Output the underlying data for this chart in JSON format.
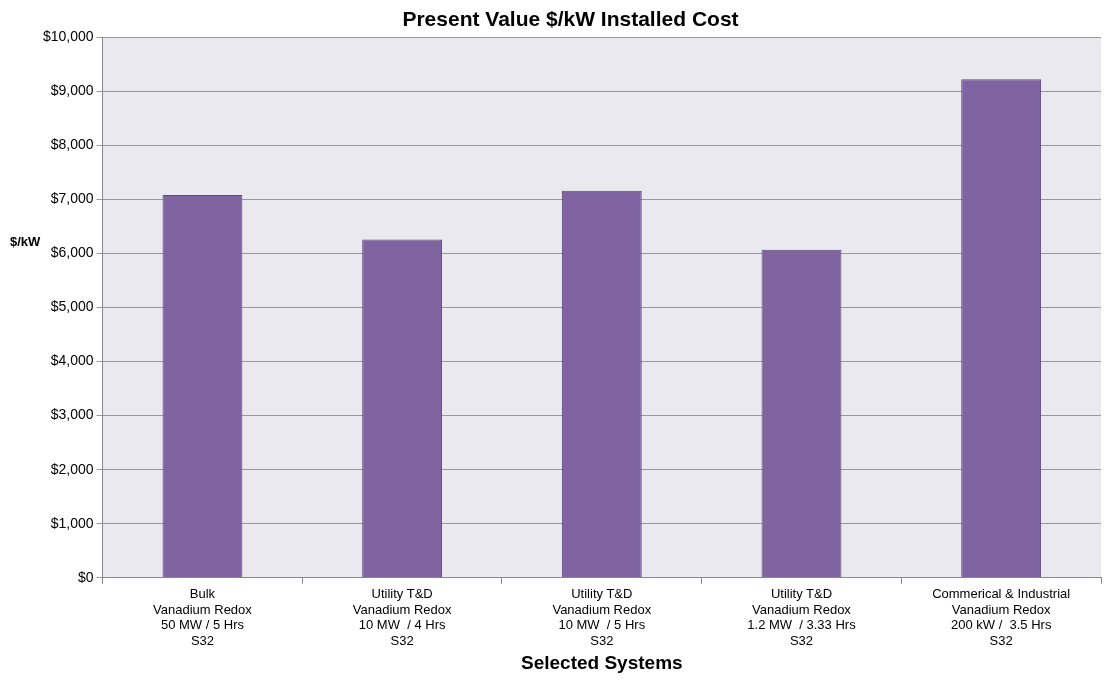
{
  "chart_data": {
    "type": "bar",
    "title": "Present Value $/kW Installed Cost",
    "xlabel": "Selected Systems",
    "ylabel": "$/kW",
    "categories": [
      "Bulk\nVanadium Redox\n50 MW / 5 Hrs\nS32",
      "Utility T&D\nVanadium Redox\n10 MW  / 4 Hrs\nS32",
      "Utility T&D\nVanadium Redox\n10 MW  / 5 Hrs\nS32",
      "Utility T&D\nVanadium Redox\n1.2 MW  / 3.33 Hrs\nS32",
      "Commerical & Industrial\nVanadium Redox\n200 kW /  3.5 Hrs\nS32"
    ],
    "values": [
      7080,
      6260,
      7160,
      6070,
      9220
    ],
    "color": "#8064a2",
    "ylim": [
      0,
      10000
    ],
    "yticks": [
      {
        "value": 0,
        "label": "$0"
      },
      {
        "value": 1000,
        "label": "$1,000"
      },
      {
        "value": 2000,
        "label": "$2,000"
      },
      {
        "value": 3000,
        "label": "$3,000"
      },
      {
        "value": 4000,
        "label": "$4,000"
      },
      {
        "value": 5000,
        "label": "$5,000"
      },
      {
        "value": 6000,
        "label": "$6,000"
      },
      {
        "value": 7000,
        "label": "$7,000"
      },
      {
        "value": 8000,
        "label": "$8,000"
      },
      {
        "value": 9000,
        "label": "$9,000"
      },
      {
        "value": 10000,
        "label": "$10,000"
      }
    ],
    "grid": "y",
    "legend": false
  }
}
